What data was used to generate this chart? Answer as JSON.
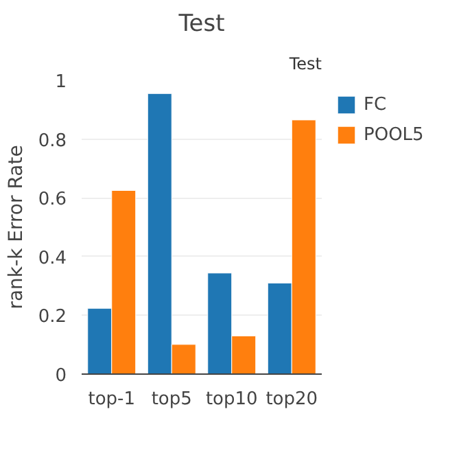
{
  "chart_data": {
    "type": "bar",
    "title": "Test",
    "ylabel": "rank-k Error Rate",
    "annotations": [
      "Test"
    ],
    "categories": [
      "top-1",
      "top5",
      "top10",
      "top20"
    ],
    "series": [
      {
        "name": "FC",
        "color": "#1f77b4",
        "values": [
          0.224,
          0.955,
          0.344,
          0.31
        ]
      },
      {
        "name": "POOL5",
        "color": "#ff7f0e",
        "values": [
          0.625,
          0.101,
          0.13,
          0.865
        ]
      }
    ],
    "ylim": [
      0,
      1
    ],
    "yticks": [
      0,
      0.2,
      0.4,
      0.6,
      0.8,
      1
    ],
    "grid": "y",
    "legend": "top right"
  }
}
